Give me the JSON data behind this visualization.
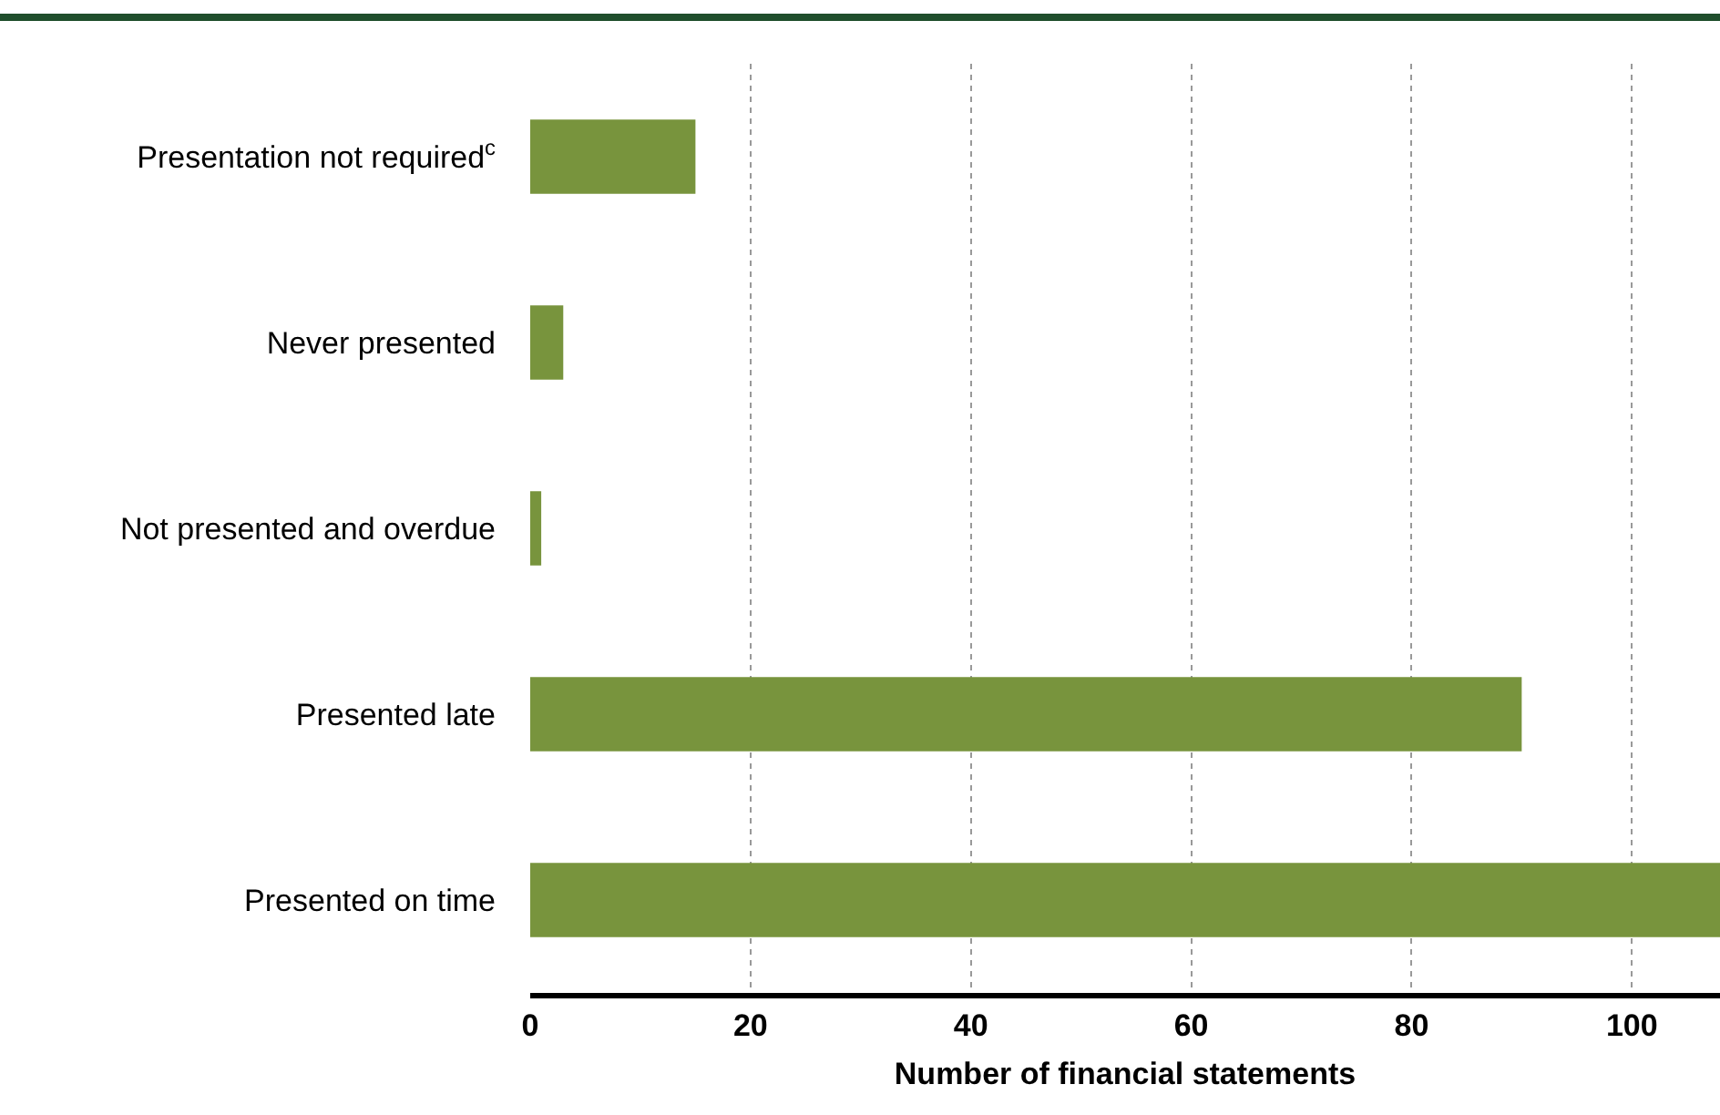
{
  "chart_data": {
    "type": "bar",
    "orientation": "horizontal",
    "xlabel": "Number of financial statements",
    "categories": [
      "Presentation not required$^{c}$",
      "Never presented",
      "Not presented and overdue",
      "Presented late",
      "Presented on time"
    ],
    "values": [
      15,
      3,
      1,
      90,
      108
    ],
    "color": "#78943d",
    "xlim": [
      0,
      108
    ],
    "xticks": [
      0,
      20,
      40,
      60,
      80,
      100
    ],
    "grid": "x"
  }
}
